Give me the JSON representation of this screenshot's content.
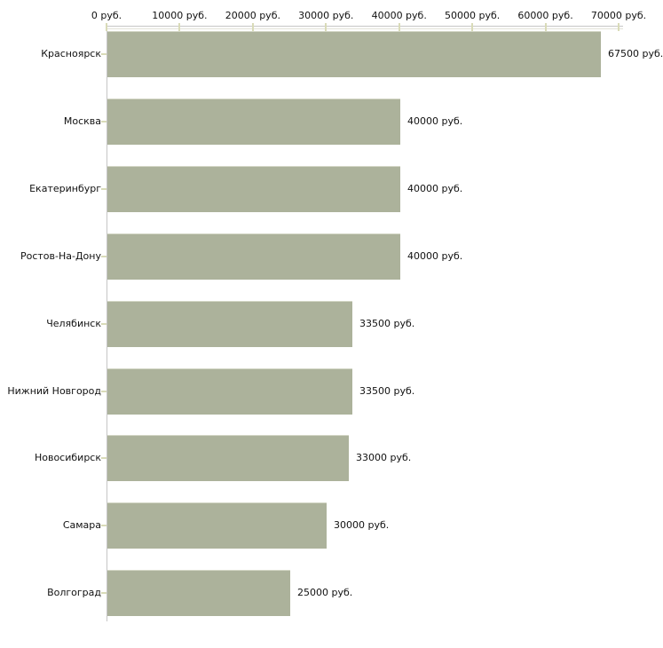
{
  "chart_data": {
    "type": "bar",
    "orientation": "horizontal",
    "title": "",
    "categories": [
      "Красноярск",
      "Москва",
      "Екатеринбург",
      "Ростов-На-Дону",
      "Челябинск",
      "Нижний Новгород",
      "Новосибирск",
      "Самара",
      "Волгоград"
    ],
    "values": [
      67500,
      40000,
      40000,
      40000,
      33500,
      33500,
      33000,
      30000,
      25000
    ],
    "value_labels": [
      "67500 руб.",
      "40000 руб.",
      "40000 руб.",
      "40000 руб.",
      "33500 руб.",
      "33500 руб.",
      "33000 руб.",
      "30000 руб.",
      "25000 руб."
    ],
    "x_ticks": [
      0,
      10000,
      20000,
      30000,
      40000,
      50000,
      60000,
      70000
    ],
    "x_tick_labels": [
      "0 руб.",
      "10000 руб.",
      "20000 руб.",
      "30000 руб.",
      "40000 руб.",
      "50000 руб.",
      "60000 руб.",
      "70000 руб."
    ],
    "xlim": [
      0,
      70000
    ],
    "xlabel": "",
    "ylabel": "",
    "axis_position": "top",
    "grid": false,
    "legend": "none",
    "colors": {
      "bar_fill": "#acb29b",
      "bar_border": "#d3d6c5",
      "axis_line": "#c6c6c6",
      "axis_line_light": "#e2e2d8",
      "tick_mark": "#d9dbb8",
      "text": "#111111",
      "background": "#ffffff"
    }
  }
}
